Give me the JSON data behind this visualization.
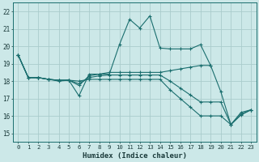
{
  "xlabel": "Humidex (Indice chaleur)",
  "ylabel": "",
  "bg_color": "#cce8e8",
  "grid_color": "#aacccc",
  "line_color": "#1a6e6e",
  "xlim": [
    -0.5,
    23.5
  ],
  "ylim": [
    14.5,
    22.5
  ],
  "yticks": [
    15,
    16,
    17,
    18,
    19,
    20,
    21,
    22
  ],
  "xticks": [
    0,
    1,
    2,
    3,
    4,
    5,
    6,
    7,
    8,
    9,
    10,
    11,
    12,
    13,
    14,
    15,
    16,
    17,
    18,
    19,
    20,
    21,
    22,
    23
  ],
  "series": [
    [
      19.5,
      18.2,
      18.2,
      18.1,
      18.0,
      18.05,
      17.15,
      18.4,
      18.4,
      18.4,
      20.1,
      21.55,
      21.05,
      21.75,
      19.9,
      19.85,
      19.85,
      19.85,
      20.1,
      18.9,
      null,
      null,
      null,
      null
    ],
    [
      19.5,
      18.2,
      18.2,
      18.1,
      18.05,
      18.05,
      17.75,
      18.3,
      18.4,
      18.5,
      18.5,
      18.5,
      18.5,
      18.5,
      18.5,
      18.6,
      18.7,
      18.8,
      18.9,
      18.9,
      17.4,
      15.5,
      16.2,
      16.35
    ],
    [
      19.5,
      18.2,
      18.2,
      18.1,
      18.05,
      18.05,
      17.85,
      18.2,
      18.3,
      18.35,
      18.35,
      18.35,
      18.35,
      18.35,
      18.35,
      18.0,
      17.6,
      17.2,
      16.8,
      16.8,
      16.8,
      15.5,
      16.1,
      16.35
    ],
    [
      19.5,
      18.2,
      18.2,
      18.1,
      18.05,
      18.05,
      18.0,
      18.1,
      18.1,
      18.1,
      18.1,
      18.1,
      18.1,
      18.1,
      18.1,
      17.5,
      17.0,
      16.5,
      16.0,
      16.0,
      16.0,
      15.5,
      16.05,
      16.35
    ]
  ]
}
